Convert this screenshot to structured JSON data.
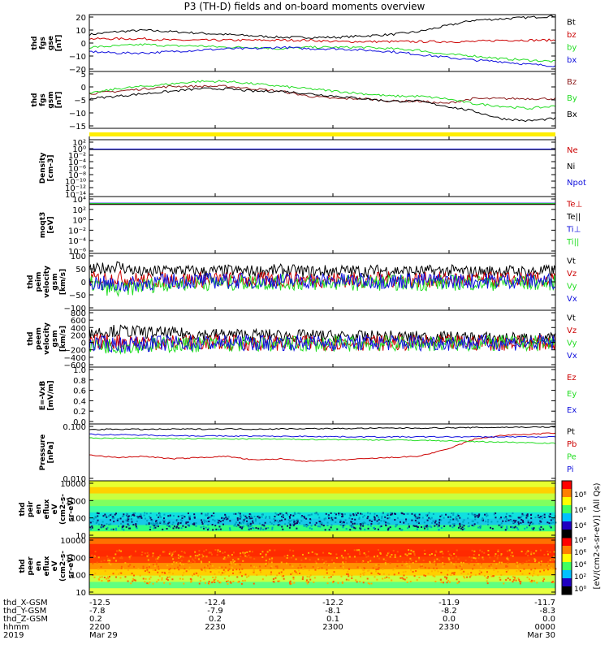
{
  "title": "P3 (TH-D) fields and on-board moments overview",
  "colors": {
    "black": "#000000",
    "red": "#cc0000",
    "green": "#22dd22",
    "blue": "#1010dd",
    "darkred": "#8b1a1a",
    "yellow": "#ffee00",
    "magenta": "#8a2be2"
  },
  "chart_data": [
    {
      "type": "line",
      "ylabel": "thd\nfgs\ngse\n[nT]",
      "ylim": [
        -20,
        20
      ],
      "yticks": [
        "20",
        "10",
        "0",
        "−10",
        "−20"
      ],
      "series": [
        {
          "name": "Bt",
          "color": "#000000",
          "values": [
            6,
            8,
            9,
            8,
            7,
            6,
            5,
            4,
            4,
            4,
            5,
            6,
            8,
            12,
            16,
            17,
            18,
            19
          ]
        },
        {
          "name": "bz",
          "color": "#cc0000",
          "values": [
            3,
            3,
            3,
            2,
            2,
            2,
            2,
            2,
            2,
            1,
            1,
            1,
            1,
            1,
            1,
            2,
            2,
            2
          ]
        },
        {
          "name": "by",
          "color": "#22dd22",
          "values": [
            -3,
            -2,
            -1,
            -2,
            -2,
            -3,
            -3,
            -4,
            -3,
            -3,
            -3,
            -4,
            -5,
            -8,
            -9,
            -11,
            -12,
            -13
          ]
        },
        {
          "name": "bx",
          "color": "#1010dd",
          "values": [
            -6,
            -7,
            -7,
            -6,
            -5,
            -4,
            -4,
            -3,
            -4,
            -4,
            -5,
            -6,
            -8,
            -10,
            -12,
            -13,
            -15,
            -16
          ]
        }
      ]
    },
    {
      "type": "line",
      "ylabel": "thd\nfgs\ngsm\n[nT]",
      "ylim": [
        -17,
        6
      ],
      "yticks": [
        "5",
        "0",
        "−5",
        "−10",
        "−15"
      ],
      "series": [
        {
          "name": "Bz",
          "color": "#8b1a1a",
          "values": [
            -3,
            -2,
            -1,
            0,
            0,
            0,
            -1,
            -2,
            -4,
            -5,
            -5,
            -6,
            -6,
            -7,
            -5,
            -5,
            -5,
            -5
          ]
        },
        {
          "name": "By",
          "color": "#22dd22",
          "values": [
            -3,
            -1,
            0,
            1,
            2,
            2,
            1,
            0,
            -1,
            -2,
            -3,
            -4,
            -4,
            -5,
            -7,
            -8,
            -9,
            -8
          ]
        },
        {
          "name": "Bx",
          "color": "#000000",
          "values": [
            -5,
            -4,
            -3,
            -2,
            -1,
            -1,
            -2,
            -2,
            -3,
            -4,
            -5,
            -6,
            -6,
            -8,
            -10,
            -13,
            -14,
            -13
          ]
        }
      ]
    },
    {
      "type": "line",
      "ylabel": "Density\n[cm-3]",
      "ylim": [
        -15,
        3
      ],
      "yticks": [
        "10²",
        "10⁰",
        "10⁻²",
        "10⁻⁴",
        "10⁻⁶",
        "10⁻⁸",
        "10⁻¹⁰",
        "10⁻¹²",
        "10⁻¹⁴"
      ],
      "series": [
        {
          "name": "Ne",
          "color": "#cc0000",
          "values": [
            0.0,
            0.0,
            0.0,
            0.0
          ]
        },
        {
          "name": "Ni",
          "color": "#000000",
          "values": [
            -0.1,
            -0.1,
            -0.1,
            -0.1
          ]
        },
        {
          "name": "Npot",
          "color": "#1010dd",
          "values": [
            0.05,
            0.05,
            0.05,
            0.05
          ]
        }
      ]
    },
    {
      "type": "line",
      "ylabel": "moqt3\n[eV]",
      "ylim": [
        -8,
        5
      ],
      "yticks": [
        "10⁴",
        "10²",
        "10⁰",
        "10⁻²",
        "10⁻⁴",
        "10⁻⁶"
      ],
      "series": [
        {
          "name": "Te⊥",
          "color": "#cc0000",
          "values": [
            3.3,
            3.3,
            3.3,
            3.3
          ]
        },
        {
          "name": "Te||",
          "color": "#000000",
          "values": [
            3.2,
            3.2,
            3.2,
            3.2
          ]
        },
        {
          "name": "Ti⊥",
          "color": "#1010dd",
          "values": [
            3.5,
            3.5,
            3.5,
            3.5
          ]
        },
        {
          "name": "Ti||",
          "color": "#22dd22",
          "values": [
            3.4,
            3.4,
            3.4,
            3.4
          ]
        }
      ]
    },
    {
      "type": "line",
      "ylabel": "thd\npeim\nvelocity\ngsm\n[km/s]",
      "ylim": [
        -120,
        110
      ],
      "yticks": [
        "100",
        "50",
        "0",
        "−50",
        "−100"
      ],
      "series": [
        {
          "name": "Vt",
          "color": "#000000",
          "values": [
            40,
            60,
            30,
            45,
            35,
            40,
            38,
            42,
            36,
            40,
            38,
            41,
            37,
            40,
            35,
            39,
            36,
            40
          ]
        },
        {
          "name": "Vz",
          "color": "#cc0000",
          "values": [
            5,
            10,
            0,
            5,
            3,
            4,
            2,
            5,
            3,
            4,
            2,
            5,
            3,
            4,
            2,
            4,
            3,
            4
          ]
        },
        {
          "name": "Vy",
          "color": "#22dd22",
          "values": [
            -10,
            -40,
            -20,
            -10,
            -8,
            -10,
            -6,
            -8,
            -10,
            -8,
            -9,
            -8,
            -10,
            -9,
            -8,
            -10,
            -9,
            -8
          ]
        },
        {
          "name": "Vx",
          "color": "#1010dd",
          "values": [
            -5,
            -20,
            -10,
            -2,
            0,
            -2,
            0,
            -1,
            -2,
            0,
            -1,
            -2,
            0,
            -1,
            -2,
            0,
            -1,
            -2
          ]
        }
      ]
    },
    {
      "type": "line",
      "ylabel": "thd\npeem\nvelocity\ngsm\n[km/s]",
      "ylim": [
        -600,
        800
      ],
      "yticks": [
        "800",
        "600",
        "400",
        "200",
        "0",
        "−200",
        "−400",
        "−600"
      ],
      "series": [
        {
          "name": "Vt",
          "color": "#000000",
          "values": [
            250,
            300,
            260,
            230,
            210,
            200,
            190,
            180,
            170,
            160,
            150,
            150,
            140,
            130,
            120,
            110,
            100,
            100
          ]
        },
        {
          "name": "Vz",
          "color": "#cc0000",
          "values": [
            20,
            30,
            20,
            10,
            10,
            0,
            0,
            0,
            -10,
            0,
            0,
            0,
            0,
            0,
            0,
            0,
            0,
            0
          ]
        },
        {
          "name": "Vy",
          "color": "#22dd22",
          "values": [
            -60,
            -80,
            -60,
            -50,
            -40,
            -40,
            -30,
            -30,
            -30,
            -30,
            -20,
            -20,
            -20,
            -20,
            -20,
            -10,
            -10,
            -10
          ]
        },
        {
          "name": "Vx",
          "color": "#1010dd",
          "values": [
            -20,
            -40,
            -20,
            -10,
            -10,
            0,
            0,
            0,
            0,
            0,
            0,
            0,
            0,
            0,
            0,
            0,
            0,
            0
          ]
        }
      ]
    },
    {
      "type": "line",
      "ylabel": "E=-VxB\n[mV/m]",
      "ylim": [
        0,
        1
      ],
      "yticks": [
        "1.0",
        "0.8",
        "0.6",
        "0.4",
        "0.2",
        "0.0"
      ],
      "series": [
        {
          "name": "Ez",
          "color": "#cc0000",
          "values": []
        },
        {
          "name": "Ey",
          "color": "#22dd22",
          "values": []
        },
        {
          "name": "Ex",
          "color": "#1010dd",
          "values": []
        }
      ]
    },
    {
      "type": "line",
      "ylabel": "Pressure\n[nPa]",
      "ylim": [
        -2.7,
        -0.5
      ],
      "yticks": [
        "0.100",
        "0.010"
      ],
      "series": [
        {
          "name": "Pt",
          "color": "#000000",
          "values": [
            -0.72,
            -0.7,
            -0.71,
            -0.7,
            -0.7,
            -0.69,
            -0.7,
            -0.69,
            -0.68,
            -0.68,
            -0.67,
            -0.66,
            -0.66,
            -0.65,
            -0.64,
            -0.63,
            -0.62,
            -0.62
          ]
        },
        {
          "name": "Pb",
          "color": "#cc0000",
          "values": [
            -1.7,
            -1.8,
            -1.75,
            -1.85,
            -1.8,
            -1.75,
            -1.9,
            -1.85,
            -1.95,
            -1.9,
            -1.85,
            -1.8,
            -1.75,
            -1.5,
            -1.1,
            -0.95,
            -0.9,
            -0.85
          ]
        },
        {
          "name": "Pe",
          "color": "#22dd22",
          "values": [
            -1.05,
            -1.05,
            -1.06,
            -1.07,
            -1.07,
            -1.08,
            -1.08,
            -1.09,
            -1.1,
            -1.1,
            -1.11,
            -1.12,
            -1.13,
            -1.15,
            -1.18,
            -1.2,
            -1.22,
            -1.25
          ]
        },
        {
          "name": "Pi",
          "color": "#1010dd",
          "values": [
            -0.9,
            -0.92,
            -0.93,
            -0.95,
            -0.96,
            -0.97,
            -0.97,
            -0.98,
            -0.98,
            -0.99,
            -1.0,
            -1.0,
            -1.0,
            -1.0,
            -1.0,
            -1.0,
            -1.0,
            -1.0
          ]
        }
      ]
    },
    {
      "type": "heatmap",
      "ylabel": "thd\npeir\nen\neflux\neV\n(cm2-s-\nsr-eV)",
      "yticks": [
        "10000",
        "1000",
        "100",
        "10"
      ]
    },
    {
      "type": "heatmap",
      "ylabel": "thd\npeer\nen\neflux\neV\n(cm2-s-\nsr-eV)",
      "yticks": [
        "10000",
        "1000",
        "100",
        "10"
      ]
    }
  ],
  "colorbar": {
    "label": "[eV/(cm2-s-sr-eV)] (All Qs)",
    "top_ticks": [
      "10⁸",
      "10⁶",
      "10⁴"
    ],
    "bottom_ticks": [
      "10⁸",
      "10⁶",
      "10⁴",
      "10²",
      "10⁰"
    ]
  },
  "xaxis": {
    "rows": [
      {
        "label": "thd_X-GSM",
        "values": [
          "-12.5",
          "-12.4",
          "-12.2",
          "-11.9",
          "-11.7"
        ]
      },
      {
        "label": "thd_Y-GSM",
        "values": [
          "-7.8",
          "-7.9",
          "-8.1",
          "-8.2",
          "-8.3"
        ]
      },
      {
        "label": "thd_Z-GSM",
        "values": [
          "0.2",
          "0.2",
          "0.1",
          "0.0",
          "0.0"
        ]
      },
      {
        "label": "hhmm",
        "values": [
          "2200",
          "2230",
          "2300",
          "2330",
          "0000"
        ]
      },
      {
        "label": "2019",
        "values": [
          "Mar 29",
          "",
          "",
          "",
          "Mar 30"
        ]
      }
    ]
  }
}
